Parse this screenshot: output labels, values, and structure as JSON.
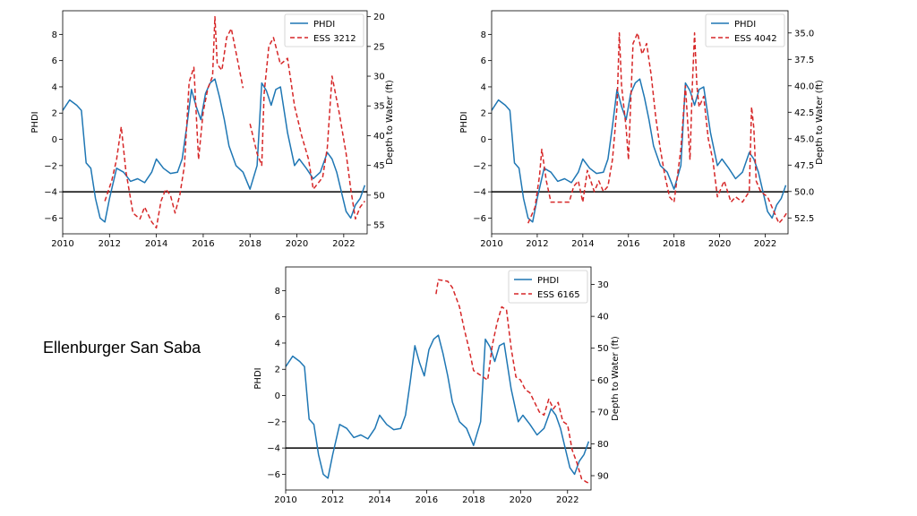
{
  "slide": {
    "side_title": "Ellenburger San Saba"
  },
  "colors": {
    "phdi": "#1f77b4",
    "well": "#d62728",
    "baseline": "#000000"
  },
  "chart_data": [
    {
      "type": "line",
      "title": "",
      "xlabel": "",
      "ylabel": "PHDI",
      "y2label": "Depth to Water (ft)",
      "xlim": [
        2010,
        2023
      ],
      "ylim": [
        -7.2,
        9.8
      ],
      "y2lim": [
        56.5,
        19
      ],
      "y2_inverted": true,
      "xticks": [
        2010,
        2012,
        2014,
        2016,
        2018,
        2020,
        2022
      ],
      "xtick_labels": [
        "2010",
        "2012",
        "2014",
        "2016",
        "2018",
        "2020",
        "2022"
      ],
      "yticks": [
        -6,
        -4,
        -2,
        0,
        2,
        4,
        6,
        8
      ],
      "ytick_labels": [
        "−6",
        "−4",
        "−2",
        "0",
        "2",
        "4",
        "6",
        "8"
      ],
      "y2ticks": [
        20,
        25,
        30,
        35,
        40,
        45,
        50,
        55
      ],
      "y2tick_labels": [
        "20",
        "25",
        "30",
        "35",
        "40",
        "45",
        "50",
        "55"
      ],
      "hline": -4,
      "legend": "top-right",
      "series": [
        {
          "name": "PHDI",
          "axis": "left",
          "style": "solid",
          "x": [
            2010.0,
            2010.3,
            2010.6,
            2010.8,
            2011.0,
            2011.2,
            2011.4,
            2011.6,
            2011.8,
            2012.0,
            2012.3,
            2012.6,
            2012.9,
            2013.2,
            2013.5,
            2013.8,
            2014.0,
            2014.3,
            2014.6,
            2014.9,
            2015.1,
            2015.3,
            2015.5,
            2015.7,
            2015.9,
            2016.1,
            2016.3,
            2016.5,
            2016.7,
            2016.9,
            2017.1,
            2017.4,
            2017.7,
            2018.0,
            2018.3,
            2018.5,
            2018.7,
            2018.9,
            2019.1,
            2019.3,
            2019.6,
            2019.9,
            2020.1,
            2020.4,
            2020.7,
            2021.0,
            2021.3,
            2021.5,
            2021.7,
            2021.9,
            2022.1,
            2022.3,
            2022.5,
            2022.7,
            2022.9
          ],
          "y": [
            2.2,
            3.0,
            2.6,
            2.2,
            -1.8,
            -2.2,
            -4.5,
            -6.0,
            -6.3,
            -4.5,
            -2.2,
            -2.5,
            -3.2,
            -3.0,
            -3.3,
            -2.5,
            -1.5,
            -2.2,
            -2.6,
            -2.5,
            -1.5,
            1.0,
            3.8,
            2.5,
            1.5,
            3.5,
            4.3,
            4.6,
            3.2,
            1.5,
            -0.5,
            -2.0,
            -2.5,
            -3.8,
            -2.0,
            4.3,
            3.7,
            2.6,
            3.8,
            4.0,
            0.5,
            -2.0,
            -1.5,
            -2.2,
            -3.0,
            -2.5,
            -1.0,
            -1.5,
            -2.5,
            -4.0,
            -5.5,
            -6.0,
            -5.0,
            -4.5,
            -3.5
          ]
        },
        {
          "name": "ESS 3212",
          "axis": "right",
          "style": "dashed",
          "x": [
            2011.8,
            2012.1,
            2012.3,
            2012.5,
            2012.7,
            2013.0,
            2013.3,
            2013.5,
            2013.8,
            2014.0,
            2014.2,
            2014.4,
            2014.6,
            2014.8,
            2015.0,
            2015.2,
            2015.4,
            2015.6,
            2015.8,
            2016.0,
            2016.2,
            2016.4,
            2016.5,
            2016.6,
            2016.8,
            2017.0,
            2017.2,
            2017.5,
            2017.7
          ],
          "y": [
            51.0,
            47.5,
            44.0,
            38.5,
            46.0,
            53.0,
            54.0,
            52.0,
            54.5,
            55.5,
            51.0,
            49.0,
            50.0,
            53.0,
            50.0,
            45.0,
            31.0,
            28.5,
            44.0,
            36.0,
            32.0,
            30.0,
            20.0,
            28.0,
            29.0,
            23.5,
            22.0,
            28.0,
            32.0
          ]
        },
        {
          "name": "ESS 3212 (segment 2)",
          "axis": "right",
          "style": "dashed",
          "x": [
            2018.0,
            2018.3,
            2018.5,
            2018.6,
            2018.8,
            2019.0,
            2019.3,
            2019.6,
            2019.9,
            2020.2,
            2020.5,
            2020.7,
            2020.9,
            2021.1,
            2021.3,
            2021.5,
            2021.8,
            2022.1,
            2022.3,
            2022.5,
            2022.7,
            2022.9
          ],
          "y": [
            38.0,
            43.0,
            45.0,
            33.0,
            25.0,
            23.5,
            28.0,
            27.0,
            35.0,
            40.0,
            44.0,
            49.0,
            48.0,
            47.0,
            42.0,
            30.0,
            36.0,
            43.0,
            49.0,
            54.0,
            52.0,
            51.0
          ]
        }
      ]
    },
    {
      "type": "line",
      "title": "",
      "xlabel": "",
      "ylabel": "PHDI",
      "y2label": "Depth to Water (ft)",
      "xlim": [
        2010,
        2023
      ],
      "ylim": [
        -7.2,
        9.8
      ],
      "y2lim": [
        54.0,
        32.9
      ],
      "y2_inverted": true,
      "xticks": [
        2010,
        2012,
        2014,
        2016,
        2018,
        2020,
        2022
      ],
      "xtick_labels": [
        "2010",
        "2012",
        "2014",
        "2016",
        "2018",
        "2020",
        "2022"
      ],
      "yticks": [
        -6,
        -4,
        -2,
        0,
        2,
        4,
        6,
        8
      ],
      "ytick_labels": [
        "−6",
        "−4",
        "−2",
        "0",
        "2",
        "4",
        "6",
        "8"
      ],
      "y2ticks": [
        35.0,
        37.5,
        40.0,
        42.5,
        45.0,
        47.5,
        50.0,
        52.5
      ],
      "y2tick_labels": [
        "35.0",
        "37.5",
        "40.0",
        "42.5",
        "45.0",
        "47.5",
        "50.0",
        "52.5"
      ],
      "hline": -4,
      "legend": "top-right",
      "series": [
        {
          "name": "PHDI",
          "axis": "left",
          "style": "solid",
          "x": [
            2010.0,
            2010.3,
            2010.6,
            2010.8,
            2011.0,
            2011.2,
            2011.4,
            2011.6,
            2011.8,
            2012.0,
            2012.3,
            2012.6,
            2012.9,
            2013.2,
            2013.5,
            2013.8,
            2014.0,
            2014.3,
            2014.6,
            2014.9,
            2015.1,
            2015.3,
            2015.5,
            2015.7,
            2015.9,
            2016.1,
            2016.3,
            2016.5,
            2016.7,
            2016.9,
            2017.1,
            2017.4,
            2017.7,
            2018.0,
            2018.3,
            2018.5,
            2018.7,
            2018.9,
            2019.1,
            2019.3,
            2019.6,
            2019.9,
            2020.1,
            2020.4,
            2020.7,
            2021.0,
            2021.3,
            2021.5,
            2021.7,
            2021.9,
            2022.1,
            2022.3,
            2022.5,
            2022.7,
            2022.9
          ],
          "y": [
            2.2,
            3.0,
            2.6,
            2.2,
            -1.8,
            -2.2,
            -4.5,
            -6.0,
            -6.3,
            -4.5,
            -2.2,
            -2.5,
            -3.2,
            -3.0,
            -3.3,
            -2.5,
            -1.5,
            -2.2,
            -2.6,
            -2.5,
            -1.5,
            1.0,
            3.8,
            2.5,
            1.5,
            3.5,
            4.3,
            4.6,
            3.2,
            1.5,
            -0.5,
            -2.0,
            -2.5,
            -3.8,
            -2.0,
            4.3,
            3.7,
            2.6,
            3.8,
            4.0,
            0.5,
            -2.0,
            -1.5,
            -2.2,
            -3.0,
            -2.5,
            -1.0,
            -1.5,
            -2.5,
            -4.0,
            -5.5,
            -6.0,
            -5.0,
            -4.5,
            -3.5
          ]
        },
        {
          "name": "ESS 4042",
          "axis": "right",
          "style": "dashed",
          "x": [
            2011.6,
            2011.9,
            2012.1,
            2012.2,
            2012.4,
            2012.6,
            2013.0,
            2013.4,
            2013.6,
            2013.8,
            2014.0,
            2014.2,
            2014.5,
            2014.7,
            2014.9,
            2015.1,
            2015.3,
            2015.5,
            2015.6,
            2015.7,
            2015.9,
            2016.0,
            2016.2,
            2016.4,
            2016.6,
            2016.8,
            2017.0,
            2017.2,
            2017.4,
            2017.6,
            2017.8,
            2018.0,
            2018.3,
            2018.5,
            2018.7,
            2018.8,
            2018.9,
            2019.0,
            2019.1,
            2019.3,
            2019.5,
            2019.7,
            2019.9,
            2020.2,
            2020.5,
            2020.7,
            2021.0,
            2021.3,
            2021.4,
            2021.5,
            2021.6,
            2021.8,
            2022.1,
            2022.4,
            2022.6,
            2022.8,
            2022.95
          ],
          "y": [
            53.0,
            51.5,
            48.5,
            46.0,
            49.0,
            51.0,
            51.0,
            51.0,
            49.5,
            49.0,
            51.0,
            48.0,
            50.0,
            49.0,
            50.0,
            49.5,
            47.0,
            42.0,
            35.0,
            40.0,
            44.0,
            47.0,
            36.0,
            35.0,
            37.0,
            36.0,
            39.0,
            43.0,
            46.0,
            48.5,
            50.5,
            51.0,
            46.0,
            40.0,
            47.0,
            40.0,
            35.0,
            40.0,
            42.0,
            41.0,
            45.0,
            47.0,
            50.5,
            49.0,
            51.0,
            50.5,
            51.0,
            50.0,
            42.0,
            44.0,
            49.0,
            50.0,
            50.5,
            52.0,
            53.0,
            52.5,
            52.0
          ]
        }
      ]
    },
    {
      "type": "line",
      "title": "",
      "xlabel": "",
      "ylabel": "PHDI",
      "y2label": "Depth to Water (ft)",
      "xlim": [
        2010,
        2023
      ],
      "ylim": [
        -7.2,
        9.8
      ],
      "y2lim": [
        94.5,
        24.5
      ],
      "y2_inverted": true,
      "xticks": [
        2010,
        2012,
        2014,
        2016,
        2018,
        2020,
        2022
      ],
      "xtick_labels": [
        "2010",
        "2012",
        "2014",
        "2016",
        "2018",
        "2020",
        "2022"
      ],
      "yticks": [
        -6,
        -4,
        -2,
        0,
        2,
        4,
        6,
        8
      ],
      "ytick_labels": [
        "−6",
        "−4",
        "−2",
        "0",
        "2",
        "4",
        "6",
        "8"
      ],
      "y2ticks": [
        30,
        40,
        50,
        60,
        70,
        80,
        90
      ],
      "y2tick_labels": [
        "30",
        "40",
        "50",
        "60",
        "70",
        "80",
        "90"
      ],
      "hline": -4,
      "legend": "top-right",
      "series": [
        {
          "name": "PHDI",
          "axis": "left",
          "style": "solid",
          "x": [
            2010.0,
            2010.3,
            2010.6,
            2010.8,
            2011.0,
            2011.2,
            2011.4,
            2011.6,
            2011.8,
            2012.0,
            2012.3,
            2012.6,
            2012.9,
            2013.2,
            2013.5,
            2013.8,
            2014.0,
            2014.3,
            2014.6,
            2014.9,
            2015.1,
            2015.3,
            2015.5,
            2015.7,
            2015.9,
            2016.1,
            2016.3,
            2016.5,
            2016.7,
            2016.9,
            2017.1,
            2017.4,
            2017.7,
            2018.0,
            2018.3,
            2018.5,
            2018.7,
            2018.9,
            2019.1,
            2019.3,
            2019.6,
            2019.9,
            2020.1,
            2020.4,
            2020.7,
            2021.0,
            2021.3,
            2021.5,
            2021.7,
            2021.9,
            2022.1,
            2022.3,
            2022.5,
            2022.7,
            2022.9
          ],
          "y": [
            2.2,
            3.0,
            2.6,
            2.2,
            -1.8,
            -2.2,
            -4.5,
            -6.0,
            -6.3,
            -4.5,
            -2.2,
            -2.5,
            -3.2,
            -3.0,
            -3.3,
            -2.5,
            -1.5,
            -2.2,
            -2.6,
            -2.5,
            -1.5,
            1.0,
            3.8,
            2.5,
            1.5,
            3.5,
            4.3,
            4.6,
            3.2,
            1.5,
            -0.5,
            -2.0,
            -2.5,
            -3.8,
            -2.0,
            4.3,
            3.7,
            2.6,
            3.8,
            4.0,
            0.5,
            -2.0,
            -1.5,
            -2.2,
            -3.0,
            -2.5,
            -1.0,
            -1.5,
            -2.5,
            -4.0,
            -5.5,
            -6.0,
            -5.0,
            -4.5,
            -3.5
          ]
        },
        {
          "name": "ESS 6165",
          "axis": "right",
          "style": "dashed",
          "x": [
            2016.4,
            2016.5,
            2016.9,
            2017.1,
            2017.4,
            2017.6,
            2017.8,
            2018.0,
            2018.2,
            2018.4,
            2018.6,
            2018.8,
            2019.0,
            2019.2,
            2019.4,
            2019.6,
            2019.8,
            2020.0,
            2020.2,
            2020.4,
            2020.6,
            2020.8,
            2021.0,
            2021.2,
            2021.4,
            2021.6,
            2021.8,
            2022.0,
            2022.2,
            2022.4,
            2022.6,
            2022.8,
            2022.95
          ],
          "y": [
            33.0,
            28.5,
            29.0,
            31.0,
            37.0,
            44.0,
            50.0,
            57.0,
            58.0,
            59.0,
            60.0,
            49.0,
            42.0,
            37.0,
            38.0,
            50.0,
            59.0,
            60.0,
            63.0,
            64.0,
            67.0,
            70.0,
            71.0,
            66.0,
            69.0,
            67.0,
            73.0,
            74.0,
            82.0,
            86.0,
            91.0,
            92.0,
            92.5
          ]
        }
      ]
    }
  ]
}
